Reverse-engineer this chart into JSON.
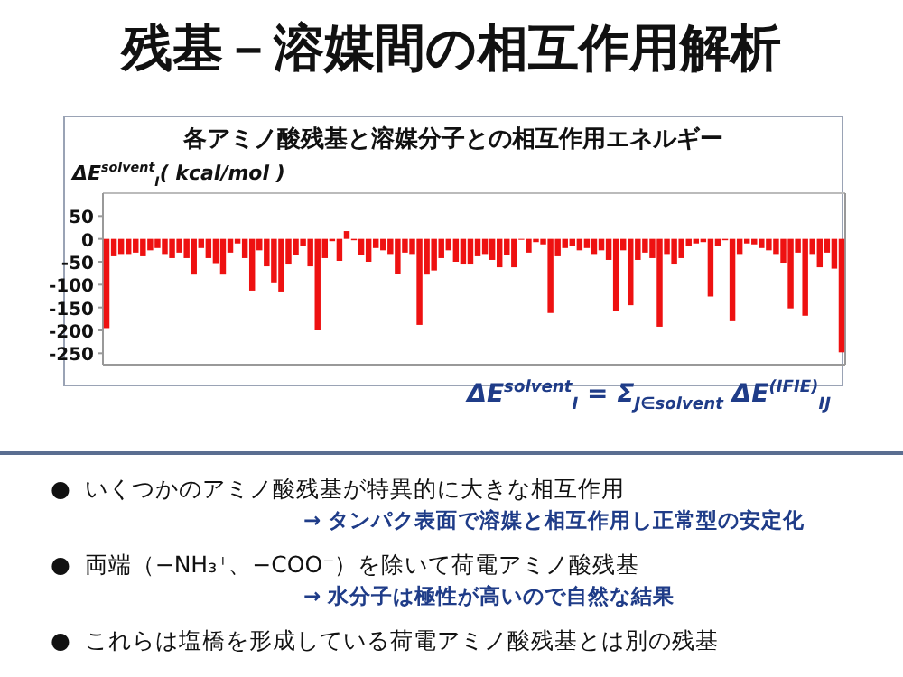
{
  "chart_data": {
    "type": "bar",
    "title": "残基－溶媒間の相互作用解析",
    "subtitle": "各アミノ酸残基と溶媒分子との相互作用エネルギー",
    "ylabel": "ΔE$^{solvent}$$_{I}$( kcal/mol )",
    "annotations": [
      "ΔE$^{solvent}$$_{I}$ = Σ$_{J∈solvent}$ ΔE$^{(IFIE)}$$_{IJ}$",
      "●  いくつかのアミノ酸残基が特異的に大きな相互作用",
      "→ タンパク表面で溶媒と相互作用し正常型の安定化",
      "●  両端（−NH₃⁺、−COO⁻）を除いて荷電アミノ酸残基",
      "→ 水分子は極性が高いので自然な結果",
      "●  これらは塩橋を形成している荷電アミノ酸残基とは別の残基"
    ],
    "color": "#ee1111",
    "ylim": [
      -275,
      100
    ],
    "yticks": [
      50,
      0,
      -50,
      -100,
      -150,
      -200,
      -250
    ],
    "grid": false,
    "categories": [
      null,
      null,
      null,
      null,
      null,
      null,
      null,
      null,
      null,
      null,
      null,
      null,
      null,
      null,
      null,
      null,
      null,
      null,
      null,
      null,
      null,
      null,
      null,
      null,
      null,
      null,
      null,
      null,
      null,
      null,
      null,
      null,
      null,
      null,
      null,
      null,
      null,
      null,
      null,
      null,
      null,
      null,
      null,
      null,
      null,
      null,
      null,
      null,
      null,
      null,
      null,
      null,
      null,
      null,
      null,
      null,
      null,
      null,
      null,
      null,
      null,
      null,
      null,
      null,
      null,
      null,
      null,
      null,
      null,
      null,
      null,
      null,
      null,
      null,
      null,
      null,
      null,
      null,
      null,
      null,
      null,
      null,
      null,
      null,
      null,
      null,
      null,
      null,
      null,
      null,
      null,
      null,
      null,
      null,
      null,
      null,
      null,
      null,
      null,
      null,
      null,
      null
    ],
    "values": [
      -195,
      -38,
      -33,
      -33,
      -30,
      -38,
      -25,
      -20,
      -33,
      -42,
      -30,
      -42,
      -78,
      -20,
      -42,
      -53,
      -78,
      -30,
      -10,
      -42,
      -113,
      -25,
      -60,
      -95,
      -115,
      -56,
      -36,
      -16,
      -60,
      -200,
      -42,
      -5,
      -48,
      17,
      -3,
      -36,
      -50,
      -20,
      -25,
      -33,
      -76,
      -30,
      -33,
      -188,
      -78,
      -69,
      -42,
      -25,
      -50,
      -56,
      -56,
      -38,
      -33,
      -46,
      -62,
      -36,
      -62,
      -2,
      -30,
      -7,
      -12,
      -162,
      -38,
      -20,
      -16,
      -25,
      -20,
      -33,
      -25,
      -46,
      -158,
      -25,
      -145,
      -46,
      -30,
      -42,
      -192,
      -33,
      -56,
      -42,
      -16,
      -10,
      -7,
      -126,
      -16,
      -3,
      -180,
      -33,
      -10,
      -12,
      -20,
      -25,
      -33,
      -52,
      -152,
      -30,
      -168,
      -33,
      -62,
      -30,
      -65,
      -248
    ]
  }
}
